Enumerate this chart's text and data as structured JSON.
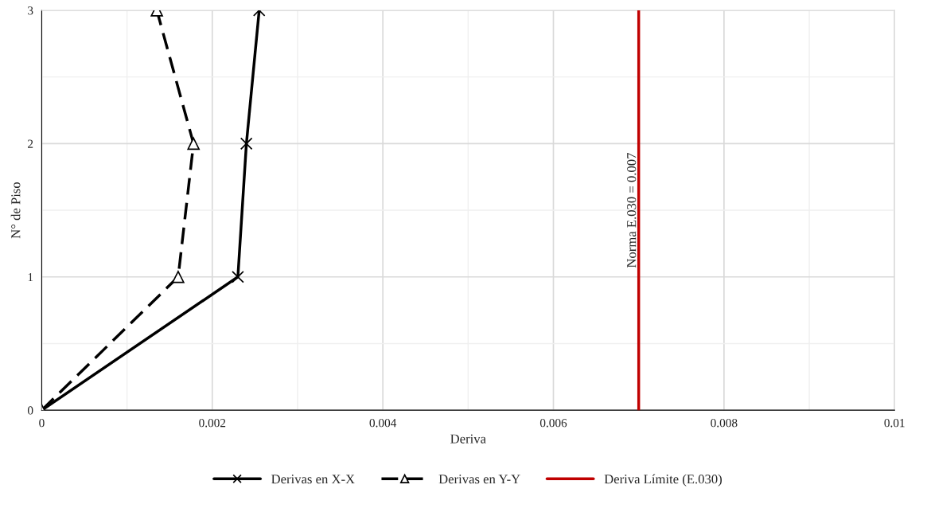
{
  "chart_data": {
    "type": "line",
    "xlabel": "Deriva",
    "ylabel": "N° de Piso",
    "xlim": [
      0,
      0.01
    ],
    "xticks": [
      0,
      0.002,
      0.004,
      0.006,
      0.008,
      0.01
    ],
    "ylim": [
      0,
      3
    ],
    "yticks": [
      0,
      1,
      2,
      3
    ],
    "grid": true,
    "legend": "bottom",
    "series": [
      {
        "name": "Derivas en X-X",
        "color": "#000000",
        "marker": "cross",
        "line_style": "solid",
        "x": [
          0,
          0.0023,
          0.0024,
          0.00255
        ],
        "values": [
          0,
          1,
          2,
          3
        ]
      },
      {
        "name": "Derivas en Y-Y",
        "color": "#000000",
        "marker": "triangle",
        "line_style": "dashed",
        "x": [
          0,
          0.0016,
          0.00178,
          0.00135
        ],
        "values": [
          0,
          1,
          2,
          3
        ]
      },
      {
        "name": "Deriva Límite (E.030)",
        "color": "#c00000",
        "marker": "none",
        "line_style": "solid",
        "x": [
          0.007,
          0.007
        ],
        "values": [
          0,
          3
        ]
      }
    ],
    "annotations": [
      {
        "text": "Norma E.030 = 0.007",
        "x": 0.007,
        "y": 1.5
      }
    ]
  }
}
